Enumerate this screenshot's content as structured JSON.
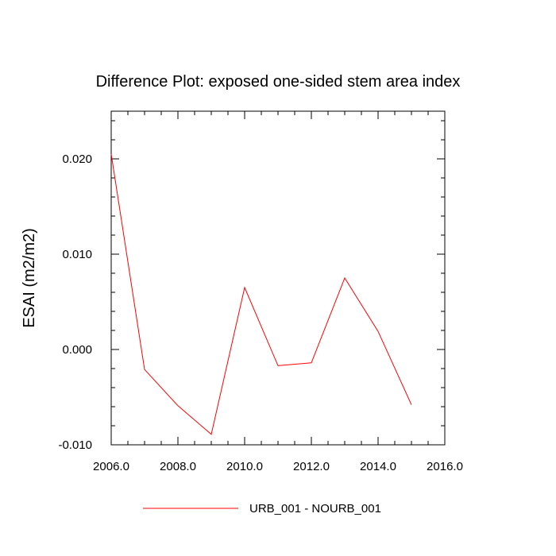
{
  "chart_data": {
    "type": "line",
    "title": "Difference Plot: exposed one-sided stem area index",
    "xlabel": "",
    "ylabel": "ESAI  (m2/m2)",
    "xlim": [
      2006.0,
      2016.0
    ],
    "ylim": [
      -0.01,
      0.025
    ],
    "x_ticks": [
      2006.0,
      2008.0,
      2010.0,
      2012.0,
      2014.0,
      2016.0
    ],
    "x_tick_labels": [
      "2006.0",
      "2008.0",
      "2010.0",
      "2012.0",
      "2014.0",
      "2016.0"
    ],
    "y_ticks": [
      -0.01,
      0.0,
      0.01,
      0.02
    ],
    "y_tick_labels": [
      "-0.010",
      "0.000",
      "0.010",
      "0.020"
    ],
    "grid": false,
    "legend_position": "bottom-center",
    "series": [
      {
        "name": "URB_001 - NOURB_001",
        "color": "#ff0000",
        "x": [
          2006,
          2007,
          2008,
          2009,
          2010,
          2011,
          2012,
          2013,
          2014,
          2015
        ],
        "y": [
          0.0205,
          -0.0021,
          -0.0059,
          -0.0089,
          0.0065,
          -0.0017,
          -0.0014,
          0.0075,
          0.0019,
          -0.0058
        ]
      }
    ]
  }
}
